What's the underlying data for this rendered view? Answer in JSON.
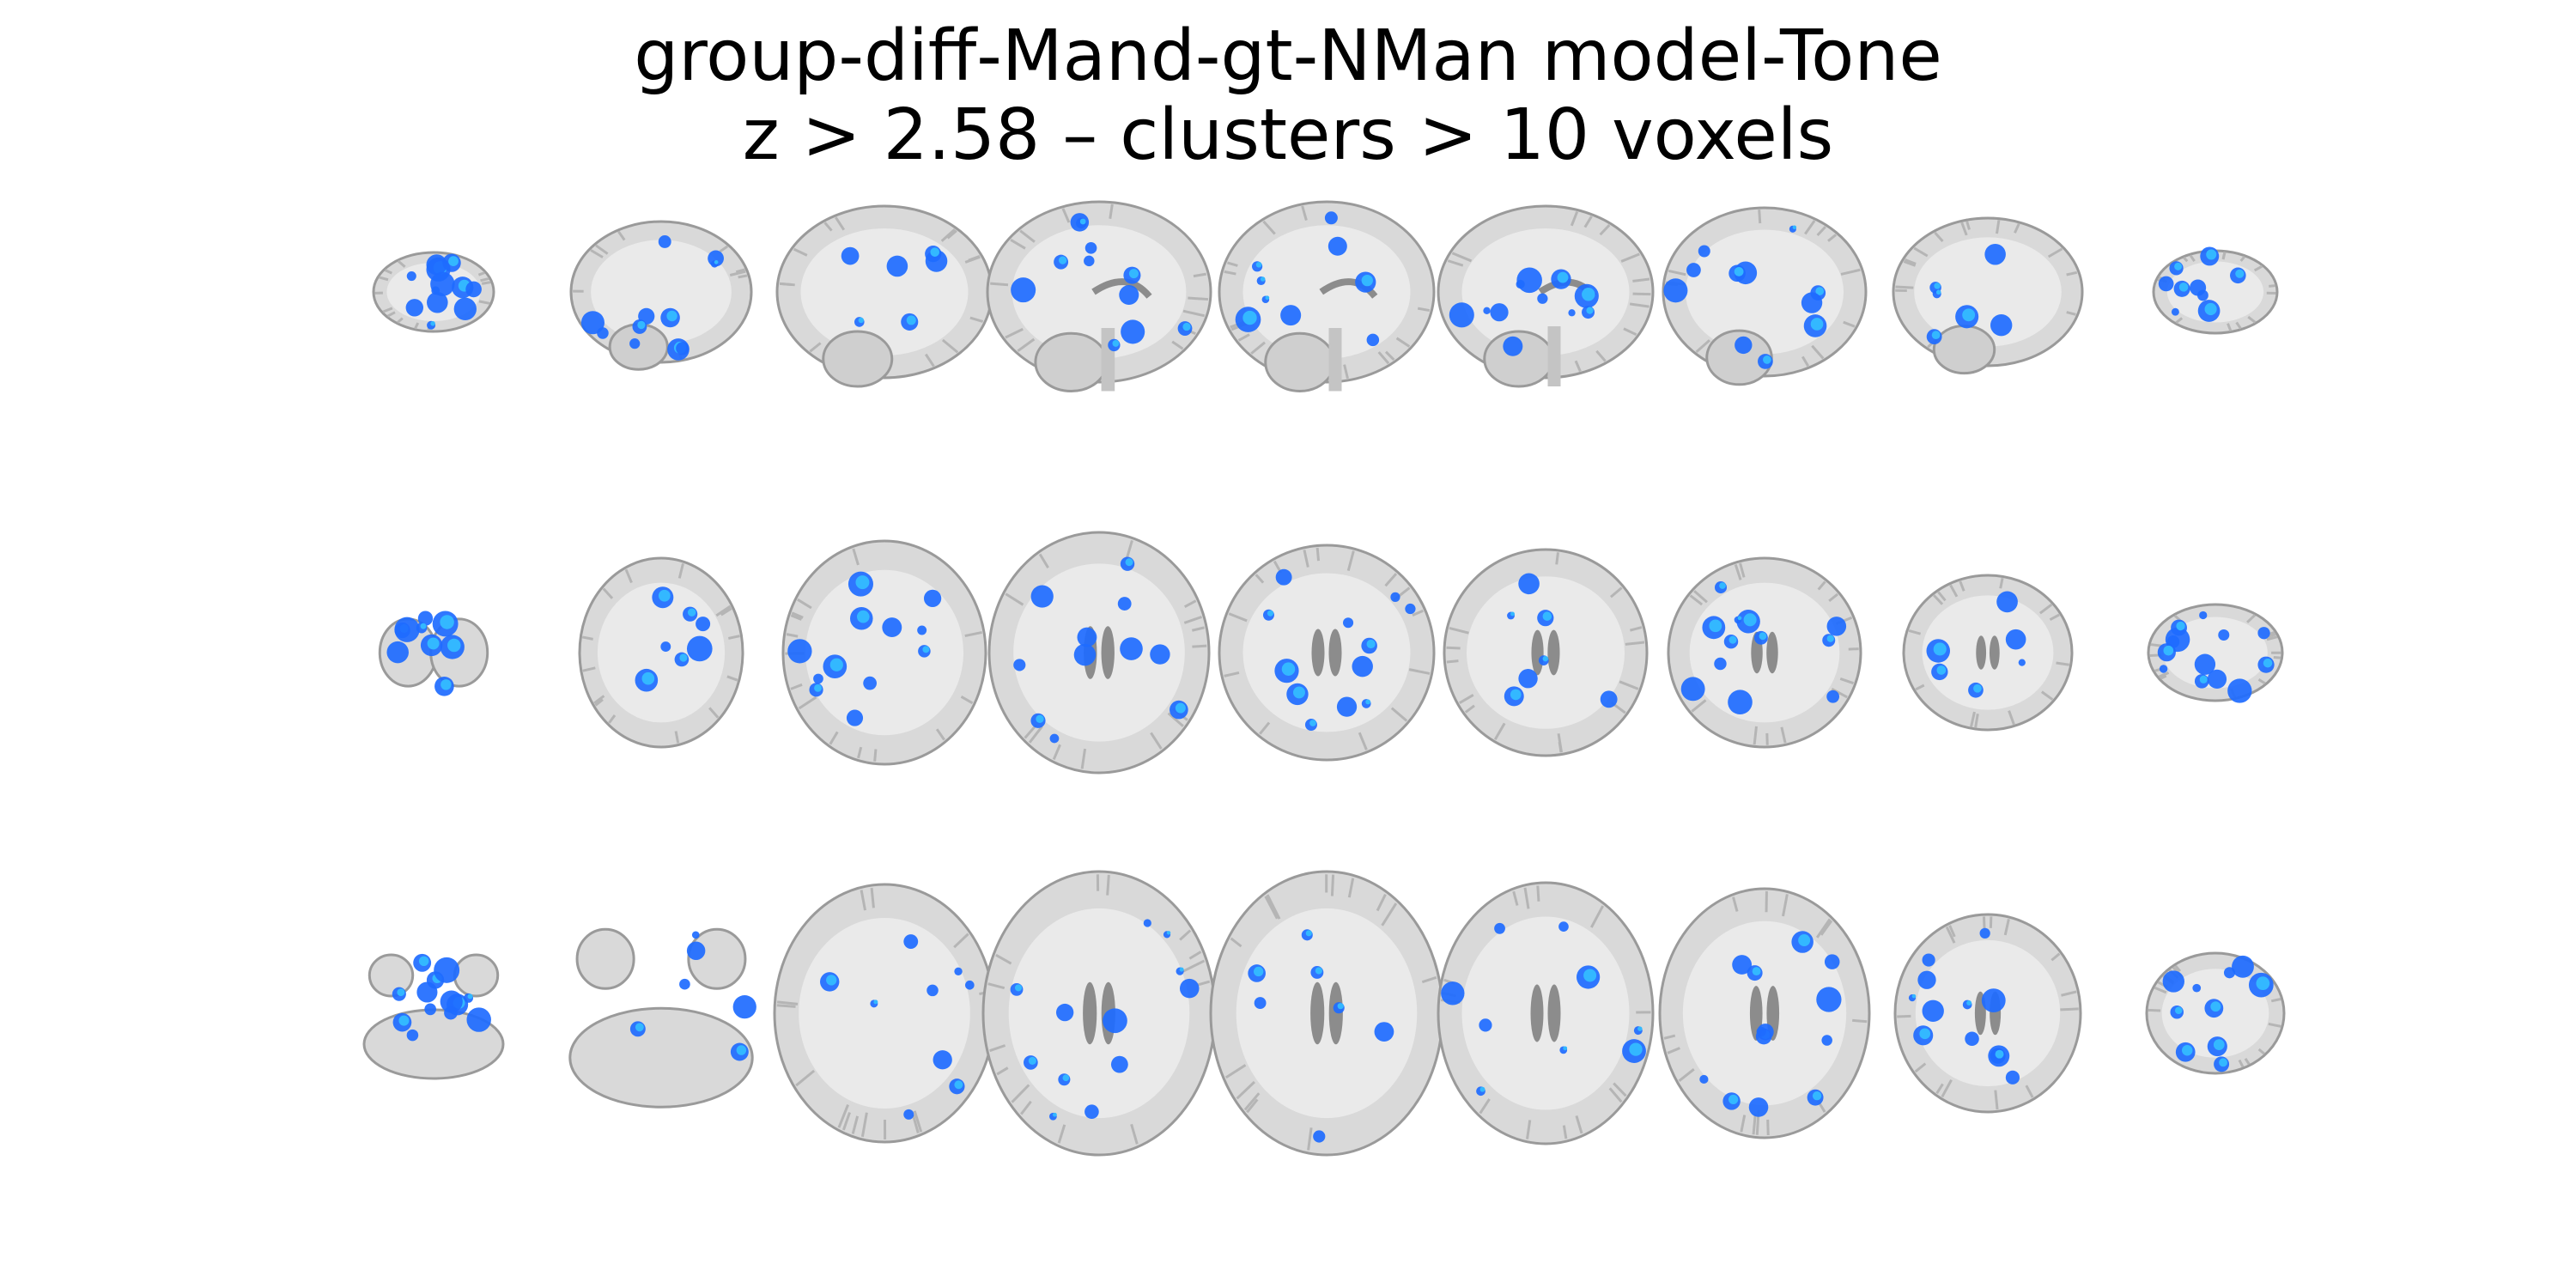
{
  "figure": {
    "title_line1": "group-diff-Mand-gt-NMan model-Tone",
    "title_line2": "z > 2.58 – clusters > 10 voxels",
    "rows": [
      {
        "view": "sagittal",
        "slice_count": 9
      },
      {
        "view": "coronal",
        "slice_count": 9
      },
      {
        "view": "axial",
        "slice_count": 9
      }
    ],
    "colors": {
      "background": "#ffffff",
      "brain_tissue": "#d9d9d9",
      "brain_outline": "#9a9a9a",
      "ventricle": "#8c8c8c",
      "activation_primary": "#1e6bff",
      "activation_highlight": "#33b8ff"
    }
  }
}
